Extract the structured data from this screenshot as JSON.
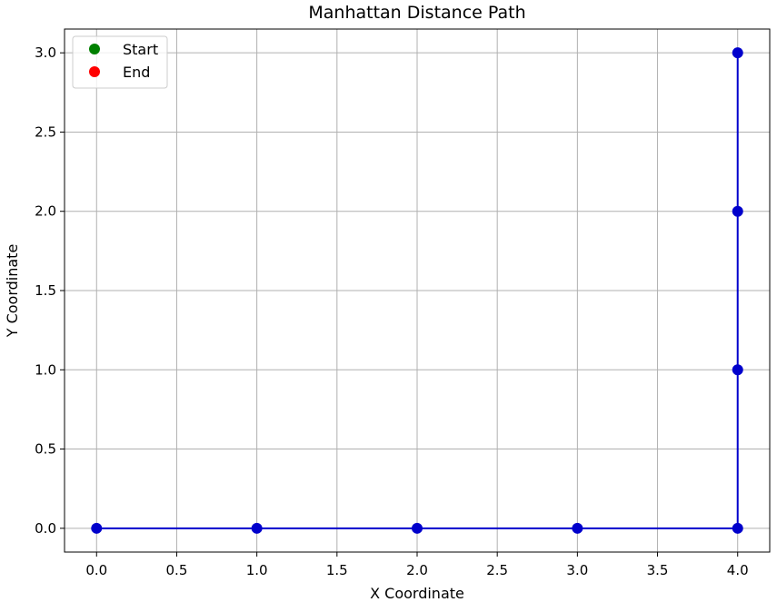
{
  "chart_data": {
    "type": "line",
    "title": "Manhattan Distance Path",
    "xlabel": "X Coordinate",
    "ylabel": "Y Coordinate",
    "xlim": [
      -0.2,
      4.2
    ],
    "ylim": [
      -0.15,
      3.15
    ],
    "x_ticks": [
      0.0,
      0.5,
      1.0,
      1.5,
      2.0,
      2.5,
      3.0,
      3.5,
      4.0
    ],
    "x_tick_labels": [
      "0.0",
      "0.5",
      "1.0",
      "1.5",
      "2.0",
      "2.5",
      "3.0",
      "3.5",
      "4.0"
    ],
    "y_ticks": [
      0.0,
      0.5,
      1.0,
      1.5,
      2.0,
      2.5,
      3.0
    ],
    "y_tick_labels": [
      "0.0",
      "0.5",
      "1.0",
      "1.5",
      "2.0",
      "2.5",
      "3.0"
    ],
    "grid": true,
    "legend_position": "top-left",
    "series": [
      {
        "color": "#0000cc",
        "marker": "circle",
        "points": [
          [
            0,
            0
          ],
          [
            1,
            0
          ],
          [
            2,
            0
          ],
          [
            3,
            0
          ],
          [
            4,
            0
          ],
          [
            4,
            1
          ],
          [
            4,
            2
          ],
          [
            4,
            3
          ]
        ]
      }
    ],
    "legend": [
      {
        "label": "Start",
        "color": "#008000"
      },
      {
        "label": "End",
        "color": "#ff0000"
      }
    ]
  }
}
